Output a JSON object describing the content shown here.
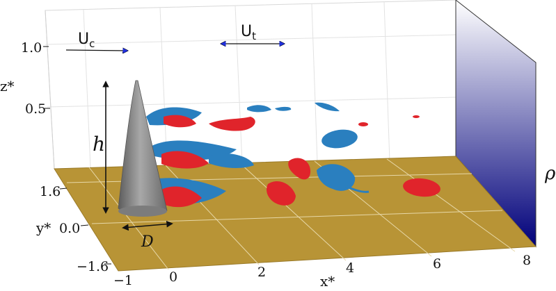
{
  "axes": {
    "x_label": "x*",
    "y_label": "y*",
    "z_label": "z*",
    "x_ticks": [
      "−1",
      "0",
      "2",
      "4",
      "6",
      "8"
    ],
    "y_ticks": [
      "1.6",
      "0.0",
      "−1.6"
    ],
    "z_ticks": [
      "1.0",
      "0.5"
    ]
  },
  "annotations": {
    "height_label": "h",
    "diameter_label": "D",
    "flow_velocity": {
      "main": "U",
      "sub": "c"
    },
    "tow_velocity": {
      "main": "U",
      "sub": "t"
    },
    "density_label": "ρ"
  },
  "colors": {
    "floor": "#b89436",
    "vortex_positive": "#e0242b",
    "vortex_negative": "#2a7fbf",
    "density_high": "#00007a",
    "density_low": "#ffffff",
    "arrow_fill": "#2030e0",
    "cone": "#8a8a8a"
  }
}
